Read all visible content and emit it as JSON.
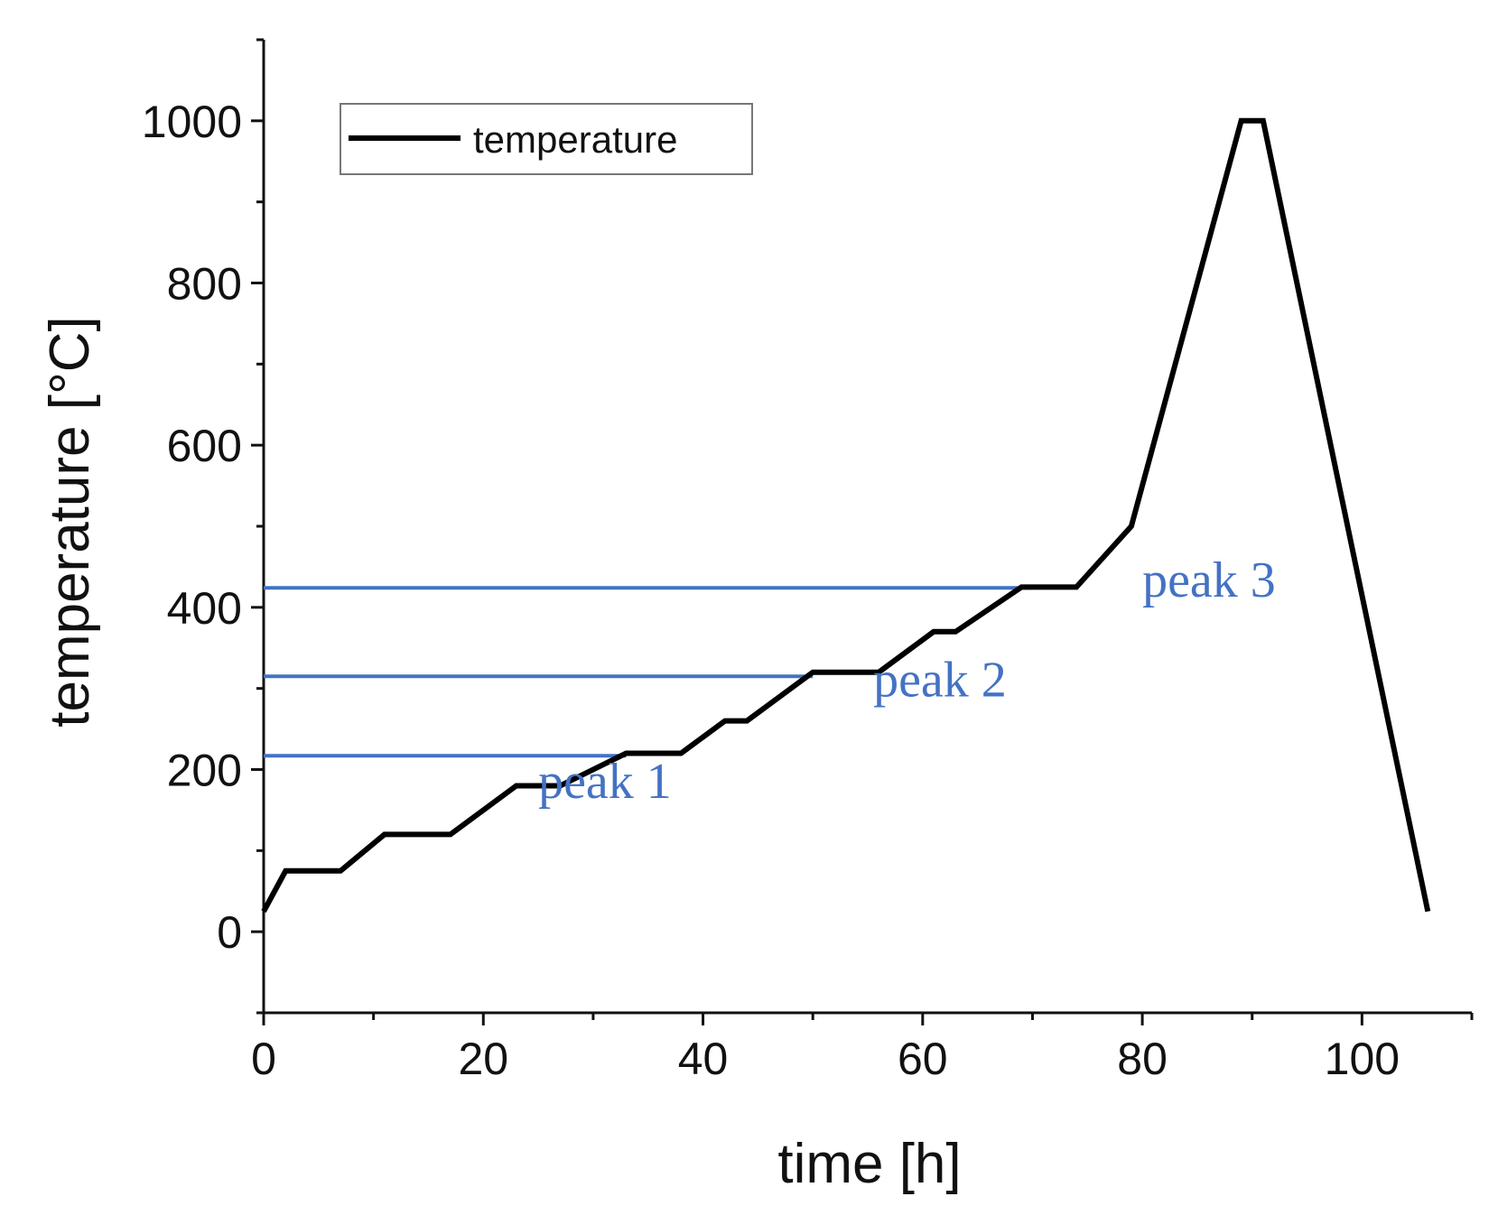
{
  "chart_data": {
    "type": "line",
    "title": "",
    "xlabel": "time [h]",
    "ylabel": "temperature [°C]",
    "xlim": [
      0,
      110
    ],
    "ylim": [
      -100,
      1100
    ],
    "x_ticks": [
      0,
      20,
      40,
      60,
      80,
      100
    ],
    "y_ticks": [
      0,
      200,
      400,
      600,
      800,
      1000
    ],
    "x_minor_step": 10,
    "y_minor_step": 100,
    "legend": {
      "position": "top-left",
      "entries": [
        "temperature"
      ]
    },
    "series": [
      {
        "name": "temperature",
        "color": "#000000",
        "x": [
          0,
          2,
          7,
          11,
          17,
          23,
          27,
          33,
          38,
          42,
          44,
          50,
          56,
          61,
          63,
          69,
          74,
          79,
          89,
          91,
          106
        ],
        "y": [
          25,
          75,
          75,
          120,
          120,
          180,
          180,
          220,
          220,
          260,
          260,
          320,
          320,
          370,
          370,
          425,
          425,
          500,
          1000,
          1000,
          25
        ]
      }
    ],
    "annotations": [
      {
        "label": "peak 1",
        "y": 217,
        "x_end": 33,
        "label_x": 25,
        "label_y": 165,
        "color": "#4472c4"
      },
      {
        "label": "peak 2",
        "y": 315,
        "x_end": 50,
        "label_x": 55.5,
        "label_y": 290,
        "color": "#4472c4"
      },
      {
        "label": "peak 3",
        "y": 424,
        "x_end": 70,
        "label_x": 80,
        "label_y": 413,
        "color": "#4472c4"
      }
    ]
  }
}
